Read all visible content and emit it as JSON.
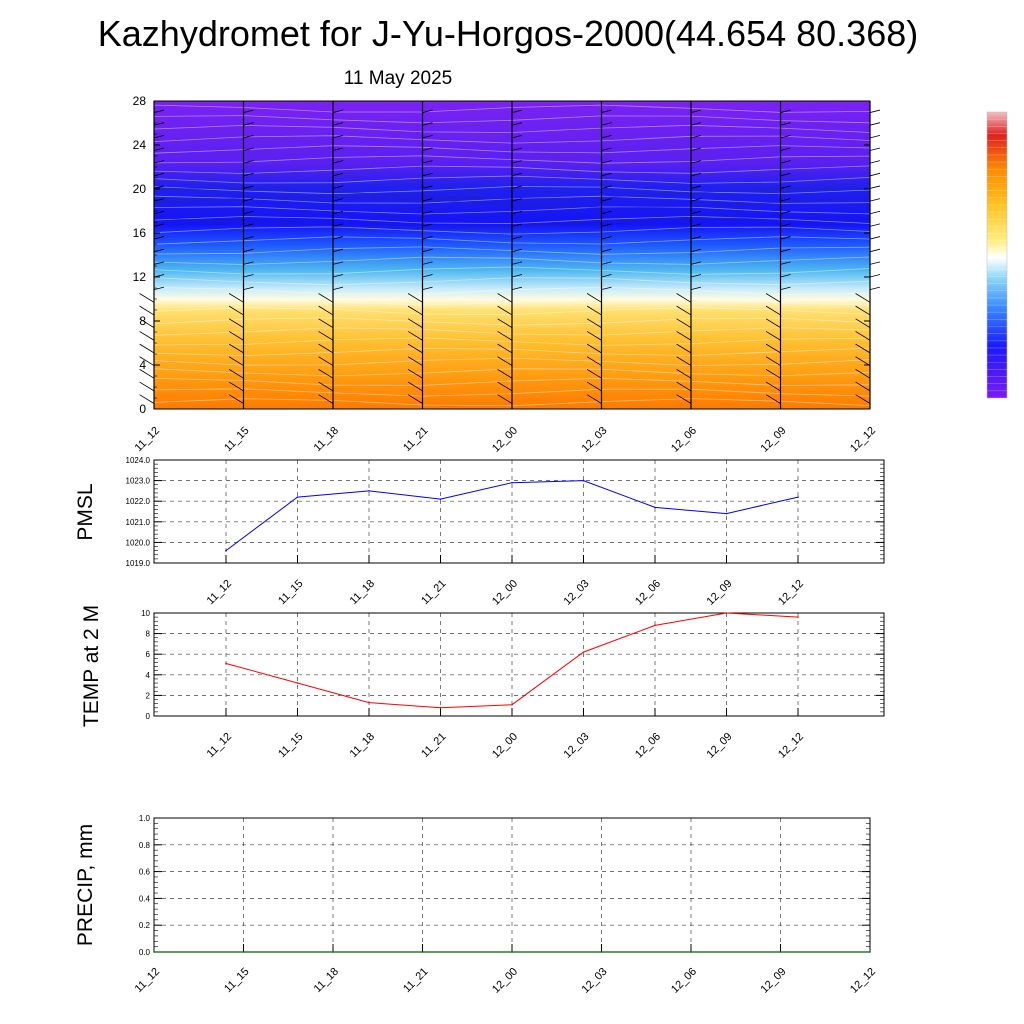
{
  "title": "Kazhydromet for J-Yu-Horgos-2000(44.654 80.368)",
  "subtitle": "11 May 2025",
  "time_labels": [
    "11_12",
    "11_15",
    "11_18",
    "11_21",
    "12_00",
    "12_03",
    "12_06",
    "12_09",
    "12_12"
  ],
  "chart_data": [
    {
      "type": "heatmap",
      "name": "height-time cross section",
      "x": [
        "11_12",
        "11_15",
        "11_18",
        "11_21",
        "12_00",
        "12_03",
        "12_06",
        "12_09",
        "12_12"
      ],
      "y_ticks": [
        0,
        4,
        8,
        12,
        16,
        20,
        24,
        28
      ],
      "ylim": [
        0,
        28
      ],
      "grid": false,
      "colorbar": {
        "placement": "right",
        "labels_shown": false
      },
      "colormap": [
        "#7a1cf2",
        "#1a1aff",
        "#3a8cff",
        "#8fd8f8",
        "#ffffff",
        "#ffee80",
        "#ffc020",
        "#ff8a00",
        "#e02020"
      ],
      "wind_barbs": true
    },
    {
      "type": "line",
      "ylabel": "PMSL",
      "x": [
        "11_12",
        "11_15",
        "11_18",
        "11_21",
        "12_00",
        "12_03",
        "12_06",
        "12_09",
        "12_12"
      ],
      "values": [
        1019.6,
        1022.2,
        1022.5,
        1022.1,
        1022.9,
        1023.0,
        1021.7,
        1021.4,
        1022.2
      ],
      "y_ticks": [
        "1019.0",
        "1020.0",
        "1021.0",
        "1022.0",
        "1023.0",
        "1024.0"
      ],
      "ylim": [
        1019,
        1024
      ],
      "color": "#0000ff",
      "grid": true
    },
    {
      "type": "line",
      "ylabel": "TEMP at 2 M",
      "x": [
        "11_12",
        "11_15",
        "11_18",
        "11_21",
        "12_00",
        "12_03",
        "12_06",
        "12_09",
        "12_12"
      ],
      "values": [
        5.1,
        3.2,
        1.3,
        0.8,
        1.1,
        6.2,
        8.8,
        10.0,
        9.6
      ],
      "y_ticks": [
        "0",
        "2",
        "4",
        "6",
        "8",
        "10"
      ],
      "ylim": [
        0,
        10
      ],
      "color": "#ff0000",
      "grid": true
    },
    {
      "type": "line",
      "ylabel": "PRECIP, mm",
      "x": [
        "11_12",
        "11_15",
        "11_18",
        "11_21",
        "12_00",
        "12_03",
        "12_06",
        "12_09",
        "12_12"
      ],
      "values": [
        0,
        0,
        0,
        0,
        0,
        0,
        0,
        0,
        0
      ],
      "y_ticks": [
        "0.0",
        "0.2",
        "0.4",
        "0.6",
        "0.8",
        "1.0"
      ],
      "ylim": [
        0,
        1
      ],
      "color": "#006400",
      "grid": true
    }
  ]
}
